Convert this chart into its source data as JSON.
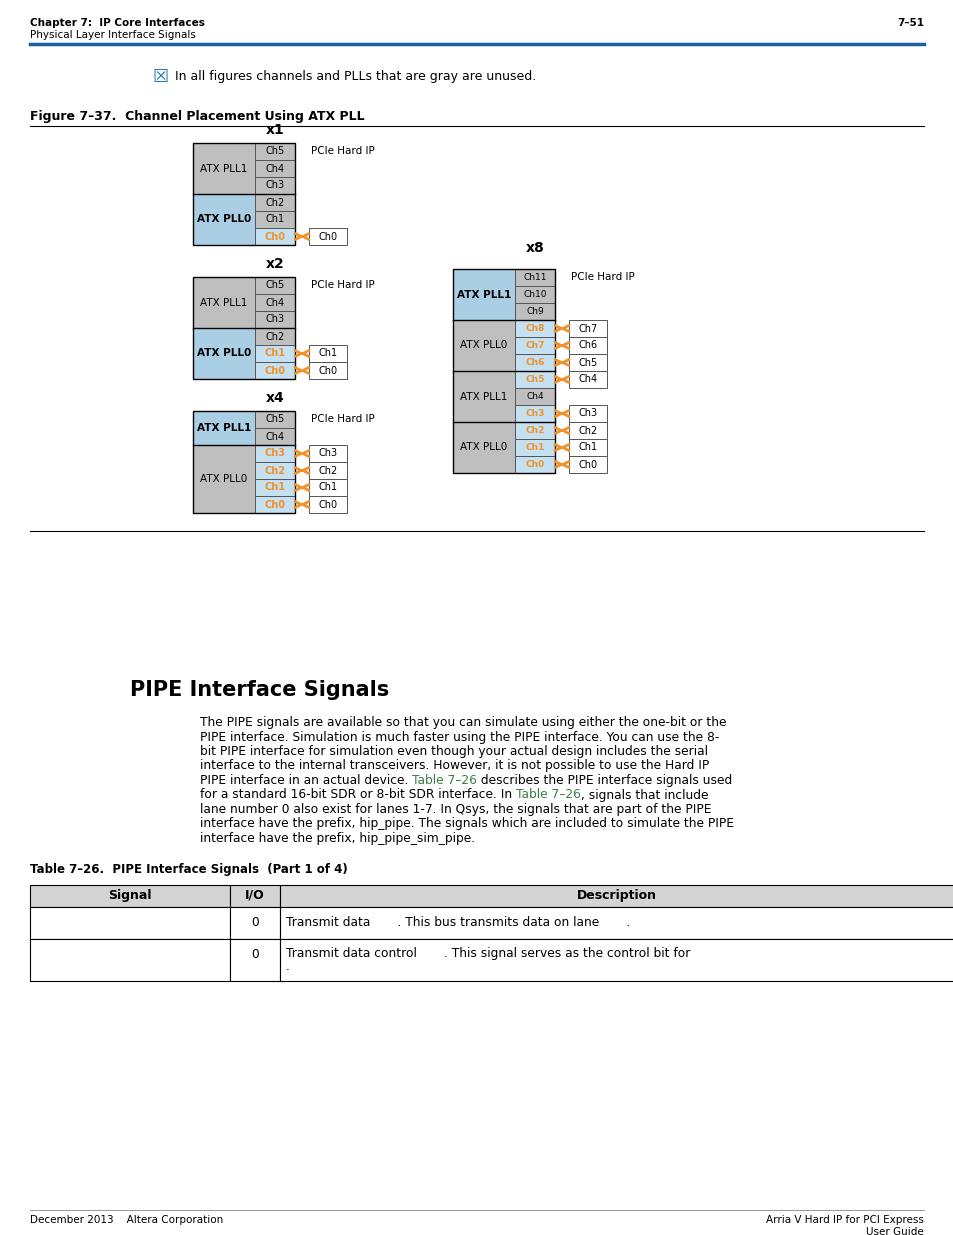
{
  "page_header_left1": "Chapter 7:  IP Core Interfaces",
  "page_header_left2": "Physical Layer Interface Signals",
  "page_header_right": "7–51",
  "header_line_color": "#1a5fa8",
  "note_text": "In all figures channels and PLLs that are gray are unused.",
  "figure_title": "Figure 7–37.  Channel Placement Using ATX PLL",
  "section_title": "PIPE Interface Signals",
  "body_text_lines": [
    "The PIPE signals are available so that you can simulate using either the one-bit or the",
    "PIPE interface. Simulation is much faster using the PIPE interface. You can use the 8-",
    "bit PIPE interface for simulation even though your actual design includes the serial",
    "interface to the internal transceivers. However, it is not possible to use the Hard IP",
    [
      "PIPE interface in an actual device. ",
      "Table 7–26",
      " describes the PIPE interface signals used"
    ],
    [
      "for a standard 16-bit SDR or 8-bit SDR interface. In ",
      "Table 7–26",
      ", signals that include"
    ],
    "lane number 0 also exist for lanes 1-7. In Qsys, the signals that are part of the PIPE",
    "interface have the prefix, hip_pipe. The signals which are included to simulate the PIPE",
    "interface have the prefix, hip_pipe_sim_pipe."
  ],
  "table_title": "Table 7–26.  PIPE Interface Signals  (Part 1 of 4)",
  "table_headers": [
    "Signal",
    "I/O",
    "Description"
  ],
  "table_row1_col2": "0",
  "table_row1_col3": "Transmit data       . This bus transmits data on lane       .",
  "table_row2_col2": "0",
  "table_row2_col3a": "Transmit data control       . This signal serves as the control bit for",
  "table_row2_col3b": ".",
  "color_gray": "#bfbfbf",
  "color_blue": "#aacfe4",
  "color_ch_blue": "#c5e0f0",
  "color_orange": "#f0922a",
  "color_white": "#ffffff",
  "color_green_link": "#3a7d44",
  "color_header_bg": "#d0d0d0",
  "footer_left": "December 2013    Altera Corporation",
  "footer_right_line1": "Arria V Hard IP for PCI Express",
  "footer_right_line2": "User Guide"
}
